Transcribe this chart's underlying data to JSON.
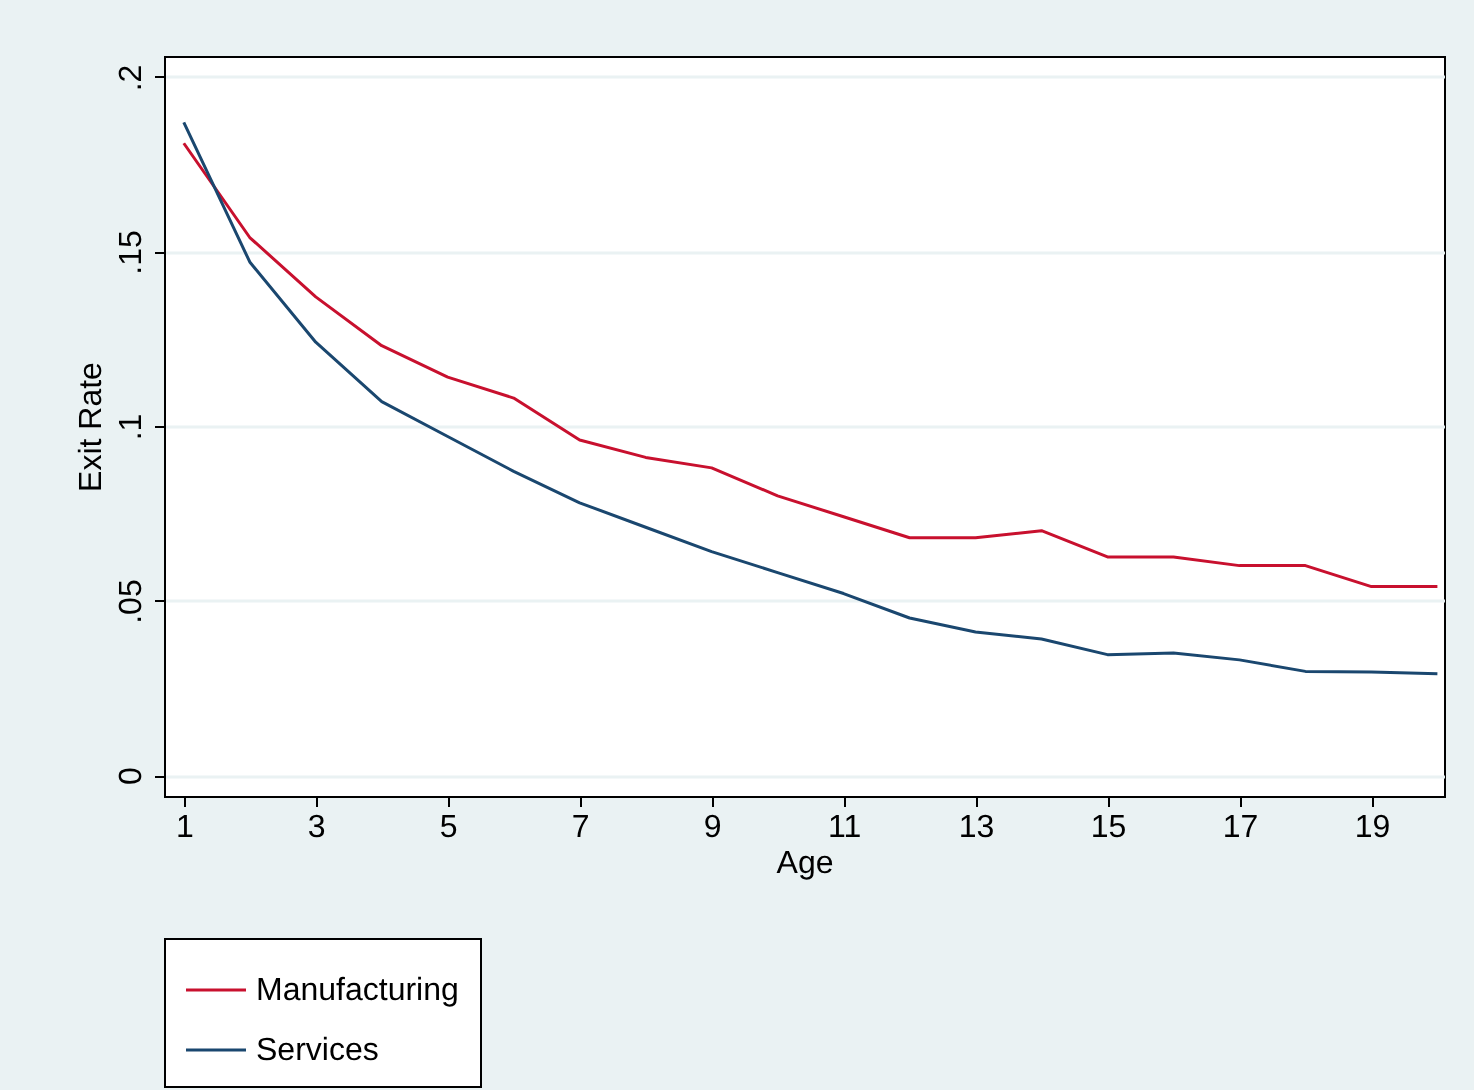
{
  "chart_data": {
    "type": "line",
    "xlabel": "Age",
    "ylabel": "Exit Rate",
    "x": [
      1,
      2,
      3,
      4,
      5,
      6,
      7,
      8,
      9,
      10,
      11,
      12,
      13,
      14,
      15,
      16,
      17,
      18,
      19,
      20
    ],
    "series": [
      {
        "name": "Manufacturing",
        "color": "#c8102e",
        "values": [
          0.181,
          0.154,
          0.137,
          0.123,
          0.114,
          0.108,
          0.096,
          0.091,
          0.088,
          0.08,
          0.074,
          0.068,
          0.068,
          0.07,
          0.0625,
          0.0625,
          0.06,
          0.06,
          0.054,
          0.054
        ]
      },
      {
        "name": "Services",
        "color": "#1a476f",
        "values": [
          0.187,
          0.147,
          0.124,
          0.107,
          0.097,
          0.087,
          0.078,
          0.071,
          0.064,
          0.058,
          0.052,
          0.045,
          0.041,
          0.039,
          0.0345,
          0.035,
          0.033,
          0.0297,
          0.0295,
          0.029
        ]
      }
    ],
    "xlim": [
      0.7,
      20.1
    ],
    "xticks": [
      1,
      3,
      5,
      7,
      9,
      11,
      13,
      15,
      17,
      19
    ],
    "ylim": [
      -0.006,
      0.206
    ],
    "yticks": [
      "0",
      {
        "value": 0.05,
        "label": ".05"
      },
      {
        "value": 0.1,
        "label": ".1"
      },
      {
        "value": 0.15,
        "label": ".15"
      },
      {
        "value": 0.2,
        "label": ".2"
      }
    ],
    "grid": "y",
    "legend": "bottom",
    "marker": "none",
    "line_style": "solid"
  }
}
